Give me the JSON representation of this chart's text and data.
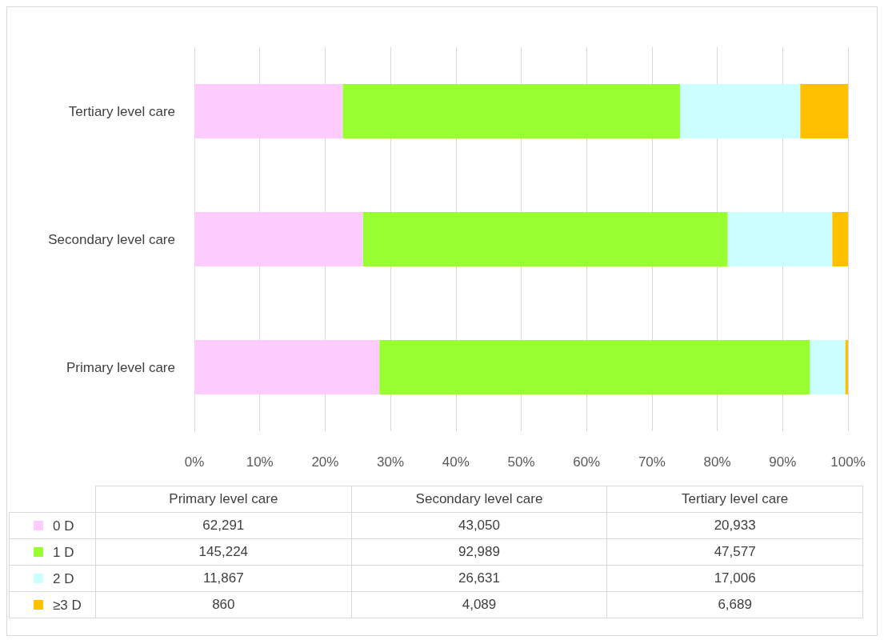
{
  "chart_data": {
    "type": "bar",
    "orientation": "horizontal",
    "stacked": true,
    "categories": [
      "Tertiary level care",
      "Secondary level care",
      "Primary level care"
    ],
    "series": [
      {
        "name": "0 D",
        "color": "#ffccff",
        "values": [
          22.7,
          25.8,
          28.3
        ]
      },
      {
        "name": "1 D",
        "color": "#99ff33",
        "values": [
          51.6,
          55.8,
          65.9
        ]
      },
      {
        "name": "2 D",
        "color": "#ccffff",
        "values": [
          18.4,
          16.0,
          5.4
        ]
      },
      {
        "name": "≥3 D",
        "color": "#ffc000",
        "values": [
          7.3,
          2.4,
          0.4
        ]
      }
    ],
    "annotations": [
      "62,291",
      "43,050",
      "20,933",
      "145,224",
      "92,989",
      "47,577",
      "11,867",
      "26,631",
      "17,006",
      "860",
      "4,089",
      "6,689"
    ],
    "xlim": [
      0,
      100
    ],
    "xticks": [
      {
        "value": 0,
        "label": "0%"
      },
      {
        "value": 10,
        "label": "10%"
      },
      {
        "value": 20,
        "label": "20%"
      },
      {
        "value": 30,
        "label": "30%"
      },
      {
        "value": 40,
        "label": "40%"
      },
      {
        "value": 50,
        "label": "50%"
      },
      {
        "value": 60,
        "label": "60%"
      },
      {
        "value": 70,
        "label": "70%"
      },
      {
        "value": 80,
        "label": "80%"
      },
      {
        "value": 90,
        "label": "90%"
      },
      {
        "value": 100,
        "label": "100%"
      }
    ],
    "grid": "x",
    "legend": "bottom"
  }
}
